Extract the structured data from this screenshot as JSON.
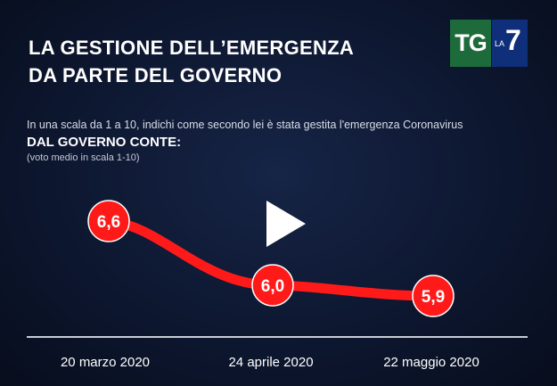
{
  "title_line1": "LA GESTIONE DELL’EMERGENZA",
  "title_line2": "DA PARTE DEL GOVERNO",
  "subtitle": "In una scala da 1 a 10, indichi come secondo lei è stata gestita l'emergenza Coronavirus",
  "emphasis": "DAL GOVERNO CONTE",
  "emphasis_suffix": ":",
  "note": "(voto medio in scala 1-10)",
  "logo": {
    "tg": "TG",
    "la": "LA",
    "seven": "7"
  },
  "colors": {
    "line": "#ff1a1a",
    "marker": "#ff1a1a",
    "background": "#0d1730",
    "axis": "#c8ccd6"
  },
  "play_icon": "play-icon",
  "chart_data": {
    "type": "line",
    "categories": [
      "20 marzo 2020",
      "24 aprile 2020",
      "22 maggio 2020"
    ],
    "values": [
      6.6,
      6.0,
      5.9
    ],
    "value_labels": [
      "6,6",
      "6,0",
      "5,9"
    ],
    "ylim": [
      5.5,
      7.0
    ],
    "grid": false,
    "legend": "none"
  }
}
